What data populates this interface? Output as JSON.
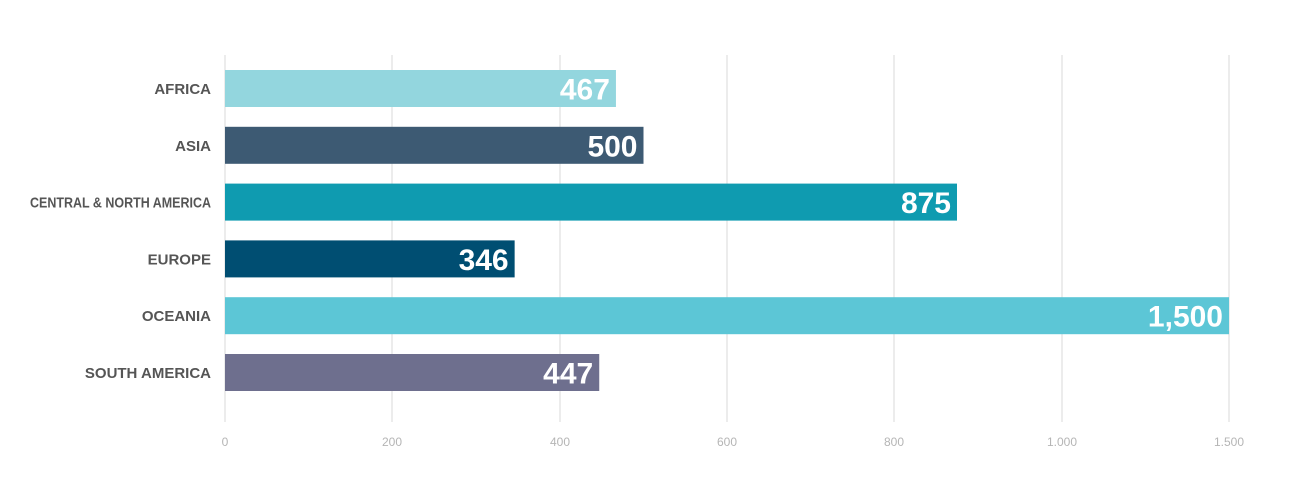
{
  "chart_data": {
    "type": "bar",
    "orientation": "horizontal",
    "categories": [
      "AFRICA",
      "ASIA",
      "CENTRAL & NORTH AMERICA",
      "EUROPE",
      "OCEANIA",
      "SOUTH AMERICA"
    ],
    "values": [
      467,
      500,
      875,
      346,
      1500,
      447
    ],
    "value_labels": [
      "467",
      "500",
      "875",
      "346",
      "1,500",
      "447"
    ],
    "colors": [
      "#93d6de",
      "#3d5a73",
      "#0f9bb0",
      "#004e72",
      "#5cc6d6",
      "#6e6f8e"
    ],
    "x_ticks": [
      0,
      200,
      400,
      600,
      800,
      1000,
      1500
    ],
    "x_tick_labels": [
      "0",
      "200",
      "400",
      "600",
      "800",
      "1.000",
      "1.500"
    ],
    "xlim": [
      0,
      1500
    ],
    "grid": true,
    "title": "",
    "xlabel": "",
    "ylabel": ""
  }
}
